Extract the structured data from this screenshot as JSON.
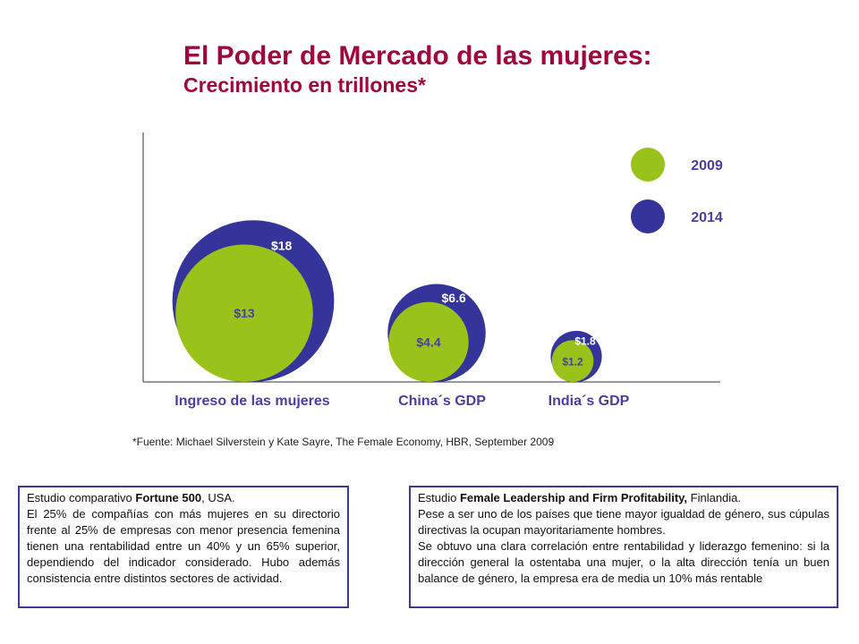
{
  "title": "El Poder de Mercado de las mujeres:",
  "subtitle": "Crecimiento en trillones*",
  "chart_data": {
    "type": "bubble",
    "categories": [
      "Ingreso de las mujeres",
      "China´s GDP",
      "India´s GDP"
    ],
    "series": [
      {
        "name": "2009",
        "values": [
          13,
          4.4,
          1.2
        ],
        "labels": [
          "$13",
          "$4.4",
          "$1.2"
        ],
        "color": "#99c21b"
      },
      {
        "name": "2014",
        "values": [
          18,
          6.6,
          1.8
        ],
        "labels": [
          "$18",
          "$6.6",
          "$1.8"
        ],
        "color": "#34349a"
      }
    ],
    "legend_position": "top-right",
    "label_color": "#4a3fa0"
  },
  "source": "*Fuente: Michael Silverstein y Kate Sayre, The Female Economy, HBR, September 2009",
  "box_left": {
    "head_pre": "Estudio comparativo ",
    "head_bold": "Fortune 500",
    "head_post": ", USA.",
    "text": "El 25% de compañías con más mujeres en su directorio frente al 25% de empresas con menor presencia femenina tienen una rentabilidad entre un 40% y un 65% superior, dependiendo del indicador considerado. Hubo además consistencia entre distintos sectores de actividad."
  },
  "box_right": {
    "head_pre": "Estudio ",
    "head_bold": "Female Leadership and Firm Profitability,",
    "head_post": " Finlandia.",
    "text1": "Pese a ser uno de los países que tiene mayor igualdad de género, sus cúpulas directivas la ocupan mayoritariamente hombres.",
    "text2": "Se obtuvo una clara correlación entre rentabilidad y liderazgo femenino:  si la dirección general la ostentaba una mujer, o la alta dirección tenía un buen balance de género, la empresa era de media un 10% más rentable"
  }
}
